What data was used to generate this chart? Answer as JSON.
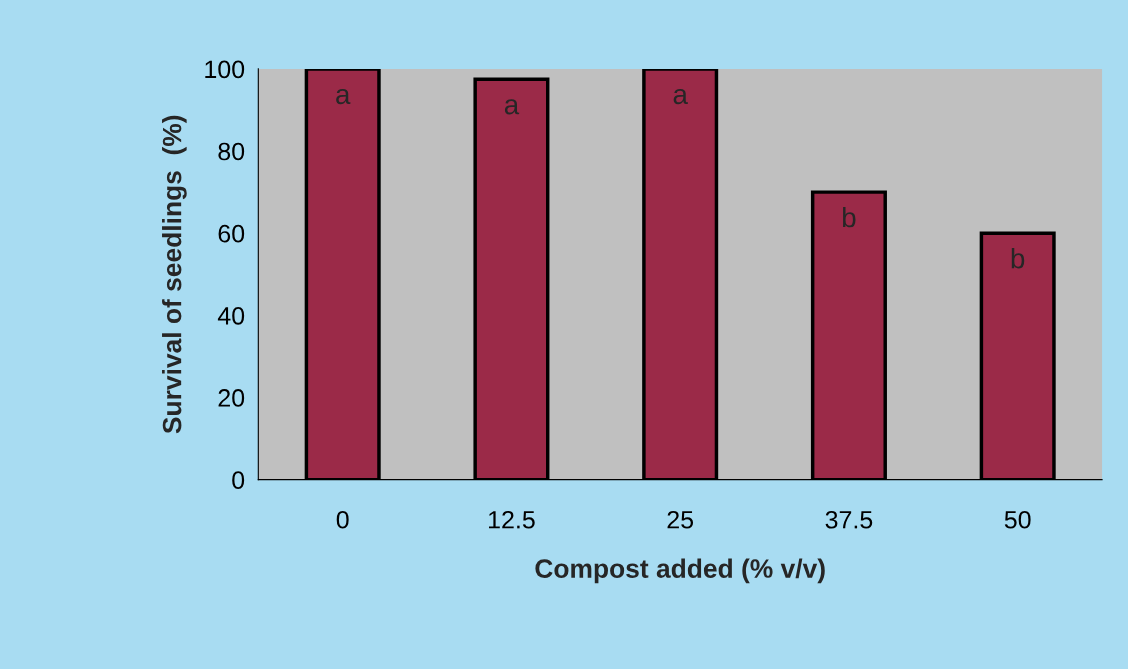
{
  "chart_data": {
    "type": "bar",
    "xlabel": "Compost added (% v/v)",
    "ylabel": "Survival of seedlings  (%)",
    "categories": [
      "0",
      "12.5",
      "25",
      "37.5",
      "50"
    ],
    "values": [
      100,
      97.5,
      100,
      70,
      60
    ],
    "color": "#9b2a48",
    "ylim": [
      0,
      100
    ],
    "yticks": [
      0,
      20,
      40,
      60,
      80,
      100
    ],
    "grid": false,
    "annotations": [
      "a",
      "a",
      "a",
      "b",
      "b"
    ]
  }
}
